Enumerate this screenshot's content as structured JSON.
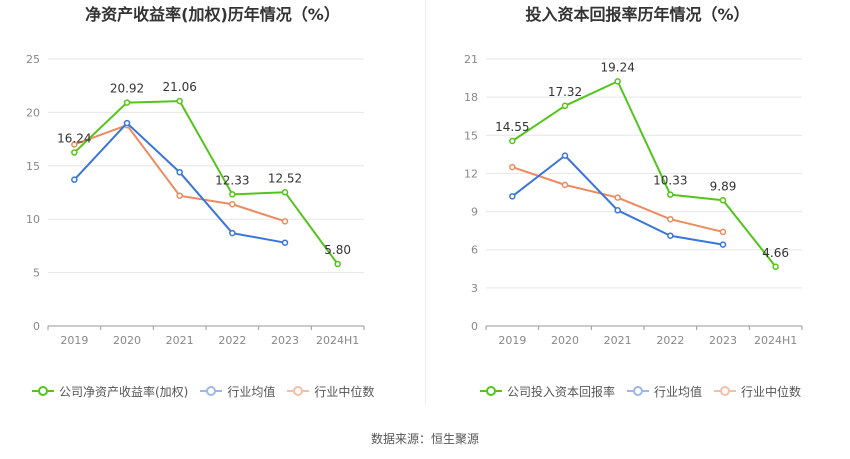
{
  "colors": {
    "company": "#52c41a",
    "industry_avg": "#3a75d9",
    "industry_median": "#ee8a5f",
    "grid": "#e6e6e6",
    "axis_text": "#888888"
  },
  "chart_data": [
    {
      "type": "line",
      "title": "净资产收益率(加权)历年情况（%）",
      "categories": [
        "2019",
        "2020",
        "2021",
        "2022",
        "2023",
        "2024H1"
      ],
      "ylim": [
        0,
        25
      ],
      "yticks": [
        0,
        5,
        10,
        15,
        20,
        25
      ],
      "series": [
        {
          "name": "公司净资产收益率(加权)",
          "key": "company",
          "values": [
            16.24,
            20.92,
            21.06,
            12.33,
            12.52,
            5.8
          ],
          "labels": [
            "16.24",
            "20.92",
            "21.06",
            "12.33",
            "12.52",
            "5.80"
          ]
        },
        {
          "name": "行业均值",
          "key": "industry_avg",
          "values": [
            13.7,
            19.0,
            14.4,
            8.7,
            7.8,
            null
          ]
        },
        {
          "name": "行业中位数",
          "key": "industry_median",
          "values": [
            17.0,
            18.8,
            12.2,
            11.4,
            9.8,
            null
          ]
        }
      ],
      "grid": true,
      "legend": "bottom"
    },
    {
      "type": "line",
      "title": "投入资本回报率历年情况（%）",
      "categories": [
        "2019",
        "2020",
        "2021",
        "2022",
        "2023",
        "2024H1"
      ],
      "ylim": [
        0,
        21
      ],
      "yticks": [
        0,
        3,
        6,
        9,
        12,
        15,
        18,
        21
      ],
      "series": [
        {
          "name": "公司投入资本回报率",
          "key": "company",
          "values": [
            14.55,
            17.32,
            19.24,
            10.33,
            9.89,
            4.66
          ],
          "labels": [
            "14.55",
            "17.32",
            "19.24",
            "10.33",
            "9.89",
            "4.66"
          ]
        },
        {
          "name": "行业均值",
          "key": "industry_avg",
          "values": [
            10.2,
            13.4,
            9.1,
            7.1,
            6.4,
            null
          ]
        },
        {
          "name": "行业中位数",
          "key": "industry_median",
          "values": [
            12.5,
            11.1,
            10.1,
            8.4,
            7.4,
            null
          ]
        }
      ],
      "grid": true,
      "legend": "bottom"
    }
  ],
  "source": "数据来源：恒生聚源"
}
